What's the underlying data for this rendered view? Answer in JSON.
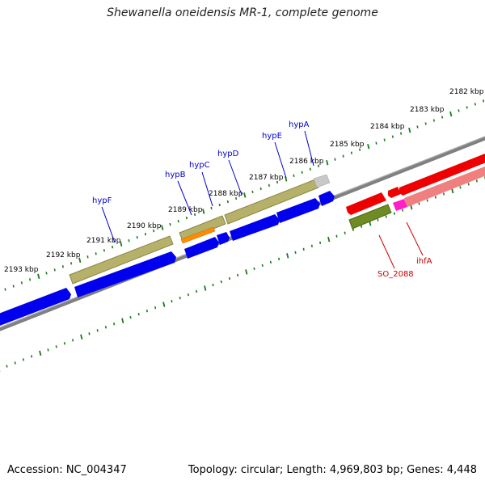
{
  "title": "Shewanella oneidensis MR-1, complete genome",
  "accession": "Accession: NC_004347",
  "topology": "Topology: circular; Length: 4,969,803 bp; Genes: 4,448",
  "colors": {
    "backbone": "#808080",
    "cds_forward": "#0000ee",
    "cds_reverse": "#ee0000",
    "feature_olive": "#b5b06a",
    "feature_green": "#6e8b24",
    "feature_orange": "#ff8c00",
    "feature_magenta": "#ff1ec8",
    "feature_pink": "#f08080",
    "feature_gray": "#c8c8c8",
    "ticks": "#1a7a1a",
    "forward_label": "#0000cc",
    "reverse_label": "#cc0000"
  },
  "ruler": {
    "labels": [
      "2182 kbp",
      "2183 kbp",
      "2184 kbp",
      "2185 kbp",
      "2186 kbp",
      "2187 kbp",
      "2188 kbp",
      "2189 kbp",
      "2190 kbp",
      "2191 kbp",
      "2192 kbp",
      "2193 kbp"
    ]
  },
  "gene_labels": {
    "forward": [
      "hypA",
      "hypE",
      "hypD",
      "hypC",
      "hypB",
      "hypF"
    ],
    "reverse": [
      "ihfA",
      "SO_2088"
    ]
  }
}
